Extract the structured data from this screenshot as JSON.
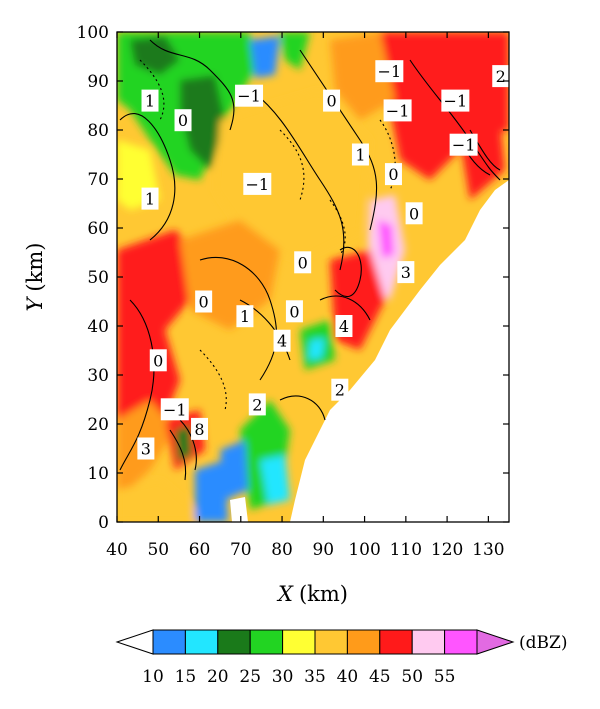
{
  "chart_data": {
    "type": "heatmap",
    "title": "",
    "xlabel": {
      "var": "X",
      "unit": "(km)"
    },
    "ylabel": {
      "var": "Y",
      "unit": "(km)"
    },
    "xlim": [
      40,
      135
    ],
    "ylim": [
      0,
      100
    ],
    "x_ticks": [
      "40",
      "50",
      "60",
      "70",
      "80",
      "90",
      "100",
      "110",
      "120",
      "130"
    ],
    "x_tick_values": [
      40,
      50,
      60,
      70,
      80,
      90,
      100,
      110,
      120,
      130
    ],
    "y_ticks": [
      "0",
      "10",
      "20",
      "30",
      "40",
      "50",
      "60",
      "70",
      "80",
      "90",
      "100"
    ],
    "y_tick_values": [
      0,
      10,
      20,
      30,
      40,
      50,
      60,
      70,
      80,
      90,
      100
    ],
    "colorbar": {
      "unit": "(dBZ)",
      "tick_labels": [
        "10",
        "15",
        "20",
        "25",
        "30",
        "35",
        "40",
        "45",
        "50",
        "55"
      ],
      "levels": [
        10,
        15,
        20,
        25,
        30,
        35,
        40,
        45,
        50,
        55
      ],
      "colors": [
        "#2b8cff",
        "#22e6ff",
        "#1a7a1a",
        "#22d422",
        "#ffff33",
        "#ffc833",
        "#ff9b1a",
        "#ff1a1a",
        "#ffcaf0",
        "#ff55ff"
      ],
      "under_color": "#ffffff",
      "over_color": "#e26ae2"
    },
    "contour_labels": [
      {
        "text": "1",
        "x": 48,
        "y": 86
      },
      {
        "text": "0",
        "x": 56,
        "y": 82
      },
      {
        "text": "−1",
        "x": 72,
        "y": 87
      },
      {
        "text": "0",
        "x": 92,
        "y": 86
      },
      {
        "text": "−1",
        "x": 106,
        "y": 92
      },
      {
        "text": "2",
        "x": 133,
        "y": 91
      },
      {
        "text": "−1",
        "x": 108,
        "y": 84
      },
      {
        "text": "−1",
        "x": 122,
        "y": 86
      },
      {
        "text": "1",
        "x": 99,
        "y": 75
      },
      {
        "text": "−1",
        "x": 124,
        "y": 77
      },
      {
        "text": "−1",
        "x": 74,
        "y": 69
      },
      {
        "text": "0",
        "x": 107,
        "y": 71
      },
      {
        "text": "1",
        "x": 48,
        "y": 66
      },
      {
        "text": "0",
        "x": 112,
        "y": 63
      },
      {
        "text": "0",
        "x": 85,
        "y": 53
      },
      {
        "text": "3",
        "x": 110,
        "y": 51
      },
      {
        "text": "0",
        "x": 61,
        "y": 45
      },
      {
        "text": "0",
        "x": 83,
        "y": 43
      },
      {
        "text": "1",
        "x": 71,
        "y": 42
      },
      {
        "text": "4",
        "x": 95,
        "y": 40
      },
      {
        "text": "4",
        "x": 80,
        "y": 37
      },
      {
        "text": "0",
        "x": 50,
        "y": 33
      },
      {
        "text": "2",
        "x": 94,
        "y": 27
      },
      {
        "text": "−1",
        "x": 54,
        "y": 23
      },
      {
        "text": "2",
        "x": 74,
        "y": 24
      },
      {
        "text": "8",
        "x": 60,
        "y": 19
      },
      {
        "text": "3",
        "x": 47,
        "y": 15
      }
    ]
  }
}
